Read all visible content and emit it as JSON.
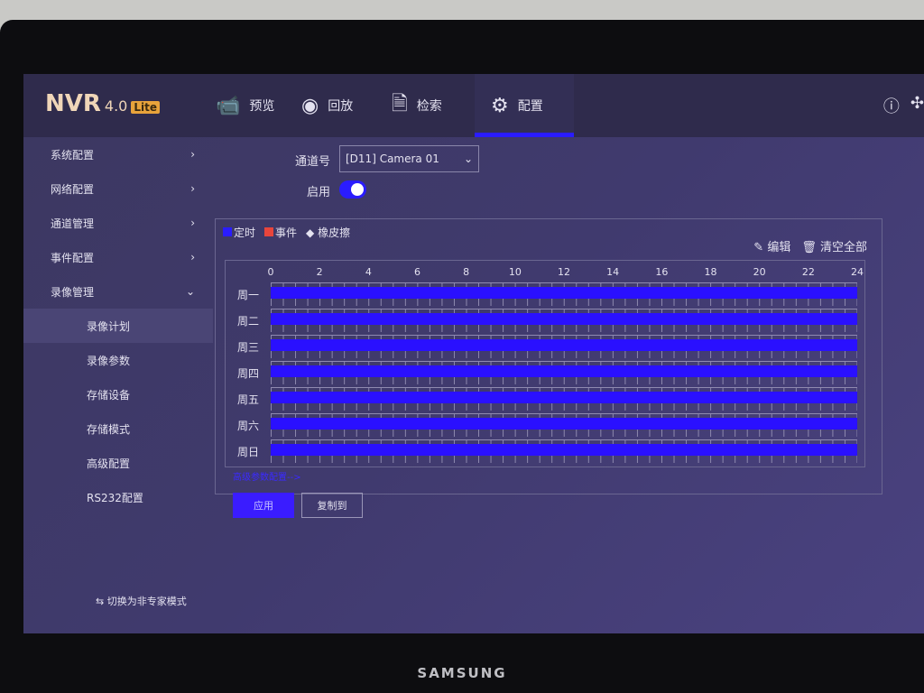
{
  "header": {
    "logo": "NVR",
    "version": "4.0",
    "edition": "Lite",
    "nav": [
      {
        "label": "预览",
        "icon": "camera-icon"
      },
      {
        "label": "回放",
        "icon": "playback-icon"
      },
      {
        "label": "检索",
        "icon": "search-doc-icon"
      },
      {
        "label": "配置",
        "icon": "gear-icon",
        "active": true
      }
    ],
    "right_icons": [
      "info-icon",
      "fan-icon"
    ]
  },
  "sidebar": {
    "items": [
      {
        "label": "系统配置",
        "chevron": "›"
      },
      {
        "label": "网络配置",
        "chevron": "›"
      },
      {
        "label": "通道管理",
        "chevron": "›"
      },
      {
        "label": "事件配置",
        "chevron": "›"
      },
      {
        "label": "录像管理",
        "chevron": "⌄"
      },
      {
        "label": "录像计划",
        "selected": true
      },
      {
        "label": "录像参数"
      },
      {
        "label": "存储设备"
      },
      {
        "label": "存储模式"
      },
      {
        "label": "高级配置"
      },
      {
        "label": "RS232配置"
      }
    ],
    "mode_switch": "切换为非专家模式"
  },
  "form": {
    "channel_label": "通道号",
    "channel_value": "[D11] Camera 01",
    "enable_label": "启用",
    "enabled": true
  },
  "schedule": {
    "legend": [
      {
        "label": "定时",
        "color": "#2a1cff"
      },
      {
        "label": "事件",
        "color": "#e8453c"
      },
      {
        "label": "橡皮擦"
      }
    ],
    "edit": "编辑",
    "clear_all": "清空全部",
    "hours": [
      "0",
      "2",
      "4",
      "6",
      "8",
      "10",
      "12",
      "14",
      "16",
      "18",
      "20",
      "22",
      "24"
    ],
    "days": [
      "周一",
      "周二",
      "周三",
      "周四",
      "周五",
      "周六",
      "周日"
    ],
    "segments": [
      [
        0,
        24
      ],
      [
        0,
        24
      ],
      [
        0,
        24
      ],
      [
        0,
        24
      ],
      [
        0,
        24
      ],
      [
        0,
        24
      ],
      [
        0,
        24
      ]
    ]
  },
  "advanced_link": "高级参数配置-->",
  "buttons": {
    "apply": "应用",
    "copy": "复制到"
  },
  "monitor_brand": "SAMSUNG"
}
